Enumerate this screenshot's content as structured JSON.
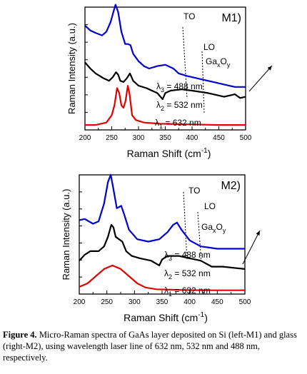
{
  "chart_data": [
    {
      "type": "line",
      "panel_label": "M1)",
      "xlabel": "Raman Shift (cm",
      "xlabel_sup": "-1",
      "xlabel_end": ")",
      "ylabel": "Raman Intensity (a.u.)",
      "xlim": [
        200,
        500
      ],
      "x_ticks": [
        "200",
        "250",
        "300",
        "350",
        "400",
        "450",
        "500"
      ],
      "ylim": [
        0,
        10
      ],
      "annotations": {
        "to": "TO",
        "lo": "LO",
        "ga": "Ga",
        "ga_sub_x": "x",
        "o": "O",
        "o_sub_y": "y"
      },
      "series": [
        {
          "lambda": "λ",
          "sub": "1",
          "rest": " = 632 nm",
          "color": "#e00000",
          "points": [
            [
              200,
              0.4
            ],
            [
              220,
              0.4
            ],
            [
              240,
              0.6
            ],
            [
              250,
              1.2
            ],
            [
              255,
              2.0
            ],
            [
              260,
              3.4
            ],
            [
              264,
              3.0
            ],
            [
              268,
              2.0
            ],
            [
              272,
              1.8
            ],
            [
              276,
              2.4
            ],
            [
              280,
              3.6
            ],
            [
              283,
              3.0
            ],
            [
              288,
              1.2
            ],
            [
              295,
              0.8
            ],
            [
              310,
              0.6
            ],
            [
              340,
              0.5
            ],
            [
              400,
              0.45
            ],
            [
              450,
              0.4
            ],
            [
              500,
              0.4
            ]
          ]
        },
        {
          "lambda": "λ",
          "sub": "2",
          "rest": " = 532 nm",
          "color": "#000000",
          "points": [
            [
              200,
              5.5
            ],
            [
              210,
              5.0
            ],
            [
              220,
              4.6
            ],
            [
              235,
              4.2
            ],
            [
              245,
              4.0
            ],
            [
              252,
              4.3
            ],
            [
              258,
              4.7
            ],
            [
              262,
              4.5
            ],
            [
              266,
              4.0
            ],
            [
              272,
              3.9
            ],
            [
              278,
              4.2
            ],
            [
              284,
              4.6
            ],
            [
              290,
              4.0
            ],
            [
              300,
              3.6
            ],
            [
              315,
              3.4
            ],
            [
              325,
              3.2
            ],
            [
              335,
              3.0
            ],
            [
              345,
              2.5
            ],
            [
              350,
              3.0
            ],
            [
              360,
              3.2
            ],
            [
              380,
              3.3
            ],
            [
              400,
              3.2
            ],
            [
              430,
              3.0
            ],
            [
              460,
              2.7
            ],
            [
              480,
              2.9
            ],
            [
              490,
              2.6
            ],
            [
              500,
              2.7
            ]
          ]
        },
        {
          "lambda": "λ",
          "sub": "3",
          "rest": " = 488 nm",
          "color": "#0000d0",
          "points": [
            [
              200,
              8.5
            ],
            [
              210,
              8.1
            ],
            [
              220,
              7.9
            ],
            [
              232,
              7.7
            ],
            [
              240,
              8.0
            ],
            [
              248,
              8.8
            ],
            [
              253,
              9.6
            ],
            [
              257,
              10.2
            ],
            [
              262,
              9.6
            ],
            [
              268,
              8.0
            ],
            [
              275,
              7.0
            ],
            [
              280,
              7.0
            ],
            [
              285,
              6.9
            ],
            [
              290,
              6.2
            ],
            [
              300,
              5.6
            ],
            [
              310,
              5.2
            ],
            [
              320,
              5.0
            ],
            [
              335,
              5.2
            ],
            [
              350,
              5.3
            ],
            [
              365,
              5.0
            ],
            [
              375,
              4.6
            ],
            [
              390,
              4.4
            ],
            [
              410,
              4.2
            ],
            [
              440,
              3.9
            ],
            [
              460,
              3.7
            ],
            [
              480,
              3.5
            ],
            [
              500,
              3.5
            ]
          ]
        }
      ]
    },
    {
      "type": "line",
      "panel_label": "M2)",
      "xlabel": "Raman Shift (cm",
      "xlabel_sup": "-1",
      "xlabel_end": ")",
      "ylabel": "Raman Intensity (a.u.)",
      "xlim": [
        200,
        500
      ],
      "x_ticks": [
        "200",
        "250",
        "300",
        "350",
        "400",
        "450",
        "500"
      ],
      "ylim": [
        0,
        10
      ],
      "annotations": {
        "to": "TO",
        "lo": "LO",
        "ga": "Ga",
        "ga_sub_x": "x",
        "o": "O",
        "o_sub_y": "y"
      },
      "series": [
        {
          "lambda": "λ",
          "sub": "1",
          "rest": " = 632 nm",
          "color": "#e00000",
          "points": [
            [
              200,
              0.6
            ],
            [
              215,
              0.9
            ],
            [
              230,
              1.5
            ],
            [
              245,
              2.1
            ],
            [
              260,
              2.4
            ],
            [
              275,
              2.1
            ],
            [
              290,
              1.5
            ],
            [
              305,
              0.9
            ],
            [
              320,
              0.55
            ],
            [
              340,
              0.4
            ],
            [
              380,
              0.35
            ],
            [
              420,
              0.32
            ],
            [
              460,
              0.32
            ],
            [
              500,
              0.32
            ]
          ]
        },
        {
          "lambda": "λ",
          "sub": "2",
          "rest": " = 532 nm",
          "color": "#000000",
          "points": [
            [
              200,
              2.8
            ],
            [
              210,
              3.3
            ],
            [
              220,
              3.6
            ],
            [
              235,
              3.6
            ],
            [
              245,
              4.0
            ],
            [
              252,
              4.8
            ],
            [
              258,
              5.8
            ],
            [
              262,
              5.6
            ],
            [
              266,
              4.8
            ],
            [
              272,
              4.6
            ],
            [
              278,
              4.4
            ],
            [
              285,
              3.6
            ],
            [
              295,
              3.2
            ],
            [
              310,
              3.0
            ],
            [
              330,
              2.8
            ],
            [
              345,
              2.4
            ],
            [
              350,
              2.9
            ],
            [
              360,
              3.2
            ],
            [
              380,
              3.2
            ],
            [
              400,
              3.0
            ],
            [
              420,
              2.8
            ],
            [
              440,
              2.3
            ],
            [
              460,
              2.3
            ],
            [
              480,
              2.2
            ],
            [
              500,
              2.1
            ]
          ]
        },
        {
          "lambda": "λ",
          "sub": "3",
          "rest": " = 488 nm",
          "color": "#0000d0",
          "points": [
            [
              200,
              6.2
            ],
            [
              210,
              6.3
            ],
            [
              225,
              5.9
            ],
            [
              235,
              6.1
            ],
            [
              245,
              7.6
            ],
            [
              252,
              9.4
            ],
            [
              257,
              10.0
            ],
            [
              262,
              8.8
            ],
            [
              268,
              7.2
            ],
            [
              276,
              7.4
            ],
            [
              282,
              6.6
            ],
            [
              290,
              5.4
            ],
            [
              305,
              4.6
            ],
            [
              325,
              4.4
            ],
            [
              345,
              4.6
            ],
            [
              360,
              5.2
            ],
            [
              370,
              5.8
            ],
            [
              377,
              6.0
            ],
            [
              385,
              5.4
            ],
            [
              400,
              4.5
            ],
            [
              420,
              4.0
            ],
            [
              450,
              3.8
            ],
            [
              480,
              3.8
            ],
            [
              500,
              3.8
            ]
          ]
        }
      ]
    }
  ],
  "caption": {
    "label": "Figure 4.",
    "text": " Micro-Raman spectra of GaAs layer deposited on Si (left-M1) and glass (right-M2), using wavelength laser line of 632 nm, 532 nm and 488 nm, respectively."
  }
}
